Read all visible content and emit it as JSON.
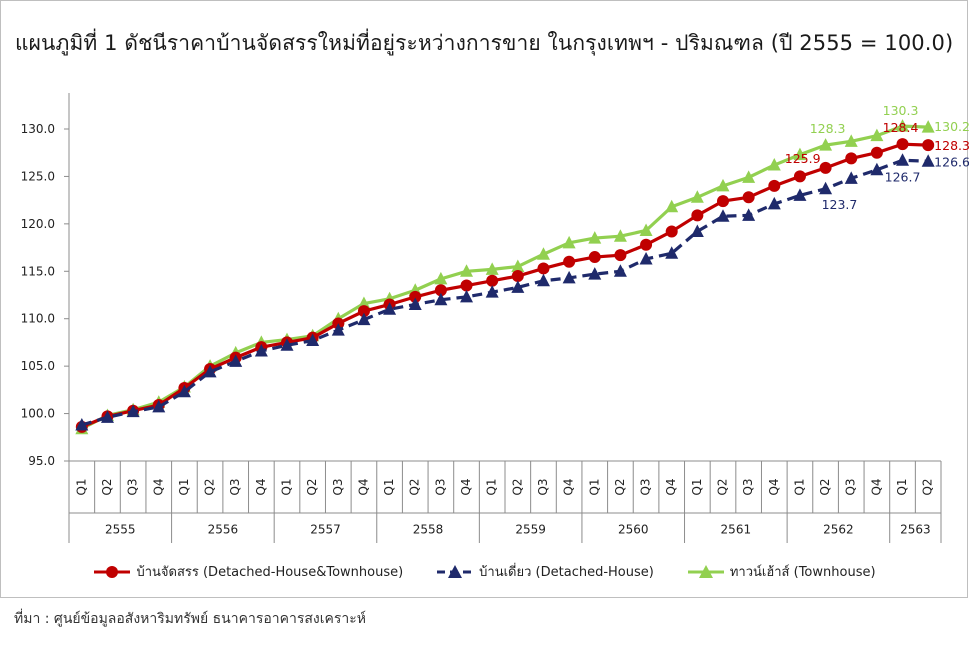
{
  "chart_data": {
    "type": "line",
    "title": "แผนภูมิที่ 1 ดัชนีราคาบ้านจัดสรรใหม่ที่อยู่ระหว่างการขาย ในกรุงเทพฯ - ปริมณฑล (ปี 2555 = 100.0)",
    "ylim": [
      95,
      130
    ],
    "y_ticks": [
      "95.0",
      "100.0",
      "105.0",
      "110.0",
      "115.0",
      "120.0",
      "125.0",
      "130.0"
    ],
    "quarters": [
      "Q1",
      "Q2",
      "Q3",
      "Q4",
      "Q1",
      "Q2",
      "Q3",
      "Q4",
      "Q1",
      "Q2",
      "Q3",
      "Q4",
      "Q1",
      "Q2",
      "Q3",
      "Q4",
      "Q1",
      "Q2",
      "Q3",
      "Q4",
      "Q1",
      "Q2",
      "Q3",
      "Q4",
      "Q1",
      "Q2",
      "Q3",
      "Q4",
      "Q1",
      "Q2",
      "Q3",
      "Q4",
      "Q1",
      "Q2"
    ],
    "years": [
      "2555",
      "2556",
      "2557",
      "2558",
      "2559",
      "2560",
      "2561",
      "2562",
      "2563"
    ],
    "series": [
      {
        "name": "บ้านจัดสรร (Detached-House&Townhouse)",
        "color": "#c00000",
        "marker": "circle",
        "dash": false,
        "values": [
          98.6,
          99.7,
          100.3,
          100.9,
          102.7,
          104.7,
          105.9,
          107.0,
          107.5,
          108.0,
          109.5,
          110.8,
          111.5,
          112.3,
          113.0,
          113.5,
          114.0,
          114.5,
          115.3,
          116.0,
          116.5,
          116.7,
          117.8,
          119.2,
          120.9,
          122.4,
          122.8,
          124.0,
          125.0,
          125.9,
          126.9,
          127.5,
          128.4,
          128.3
        ],
        "labels": [
          {
            "index": 29,
            "text": "125.9"
          },
          {
            "index": 32,
            "text": "128.4"
          },
          {
            "index": 33,
            "text": "128.3"
          }
        ]
      },
      {
        "name": "บ้านเดี่ยว (Detached-House)",
        "color": "#1f2a6b",
        "marker": "triangle",
        "dash": true,
        "values": [
          98.8,
          99.6,
          100.2,
          100.7,
          102.3,
          104.4,
          105.5,
          106.6,
          107.2,
          107.7,
          108.8,
          109.9,
          111.0,
          111.5,
          112.0,
          112.3,
          112.8,
          113.3,
          114.0,
          114.3,
          114.7,
          115.0,
          116.3,
          116.9,
          119.2,
          120.8,
          120.9,
          122.1,
          123.0,
          123.7,
          124.8,
          125.7,
          126.7,
          126.6
        ],
        "labels": [
          {
            "index": 29,
            "text": "123.7"
          },
          {
            "index": 32,
            "text": "126.7"
          },
          {
            "index": 33,
            "text": "126.6"
          }
        ]
      },
      {
        "name": "ทาวน์เฮ้าส์ (Townhouse)",
        "color": "#92d050",
        "marker": "triangle",
        "dash": false,
        "values": [
          98.4,
          99.8,
          100.4,
          101.2,
          102.8,
          105.0,
          106.4,
          107.5,
          107.8,
          108.2,
          110.0,
          111.6,
          112.1,
          113.0,
          114.2,
          115.0,
          115.2,
          115.5,
          116.8,
          118.0,
          118.5,
          118.7,
          119.3,
          121.8,
          122.8,
          124.0,
          124.9,
          126.2,
          127.3,
          128.3,
          128.7,
          129.3,
          130.3,
          130.2
        ],
        "labels": [
          {
            "index": 29,
            "text": "128.3"
          },
          {
            "index": 32,
            "text": "130.3"
          },
          {
            "index": 33,
            "text": "130.2"
          }
        ]
      }
    ],
    "legend_position": "bottom"
  },
  "source_note": "ที่มา : ศูนย์ข้อมูลอสังหาริมทรัพย์ ธนาคารอาคารสงเคราะห์"
}
